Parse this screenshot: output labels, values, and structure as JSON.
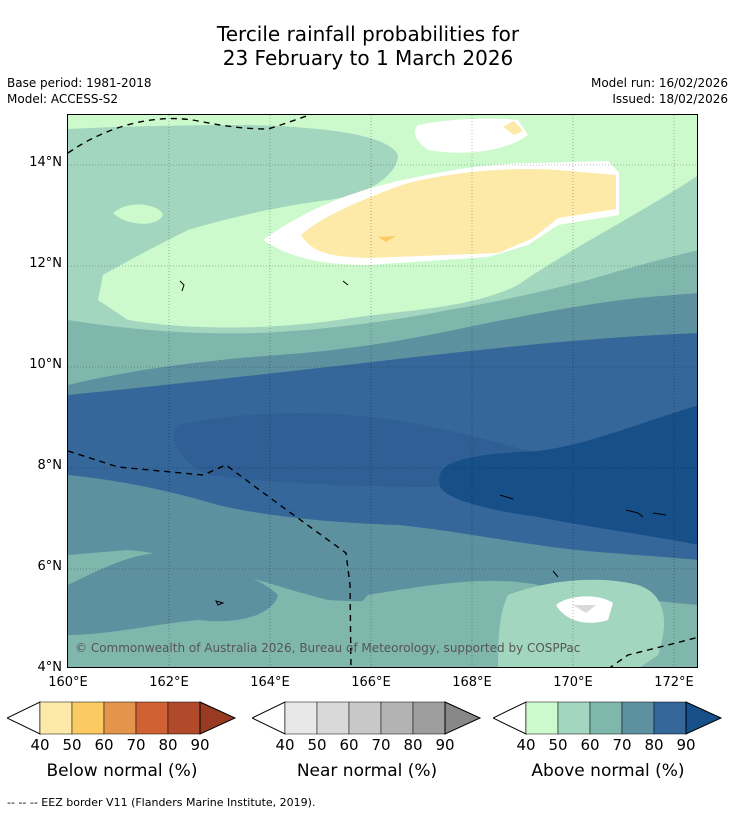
{
  "title": {
    "line1": "Tercile rainfall probabilities for",
    "line2": "23 February to 1 March 2026"
  },
  "meta": {
    "base_period": "Base period: 1981-2018",
    "model": "Model: ACCESS-S2",
    "model_run": "Model run: 16/02/2026",
    "issued": "Issued: 18/02/2026"
  },
  "axes": {
    "lat_labels": [
      "14°N",
      "12°N",
      "10°N",
      "8°N",
      "6°N",
      "4°N"
    ],
    "lon_labels": [
      "160°E",
      "162°E",
      "164°E",
      "166°E",
      "168°E",
      "170°E",
      "172°E"
    ]
  },
  "credit": "© Commonwealth of Australia 2026, Bureau of Meteorology, supported by COSPPac",
  "colorbars": [
    {
      "label": "Below normal (%)",
      "ticks": [
        "40",
        "50",
        "60",
        "70",
        "80",
        "90"
      ],
      "colors": [
        "#fde9a8",
        "#fbca63",
        "#e5944b",
        "#cf6132",
        "#b04a2a",
        "#993b22"
      ]
    },
    {
      "label": "Near normal (%)",
      "ticks": [
        "40",
        "50",
        "60",
        "70",
        "80",
        "90"
      ],
      "colors": [
        "#e8e8e8",
        "#d9d9d9",
        "#c8c8c8",
        "#b3b3b3",
        "#9e9e9e",
        "#888888"
      ]
    },
    {
      "label": "Above normal (%)",
      "ticks": [
        "40",
        "50",
        "60",
        "70",
        "80",
        "90"
      ],
      "colors": [
        "#ccfacc",
        "#a3d6bf",
        "#80b7ac",
        "#5e91a0",
        "#35679a",
        "#174f88"
      ]
    }
  ],
  "footnote": "--  --  -- EEZ border V11 (Flanders Marine Institute, 2019)."
}
